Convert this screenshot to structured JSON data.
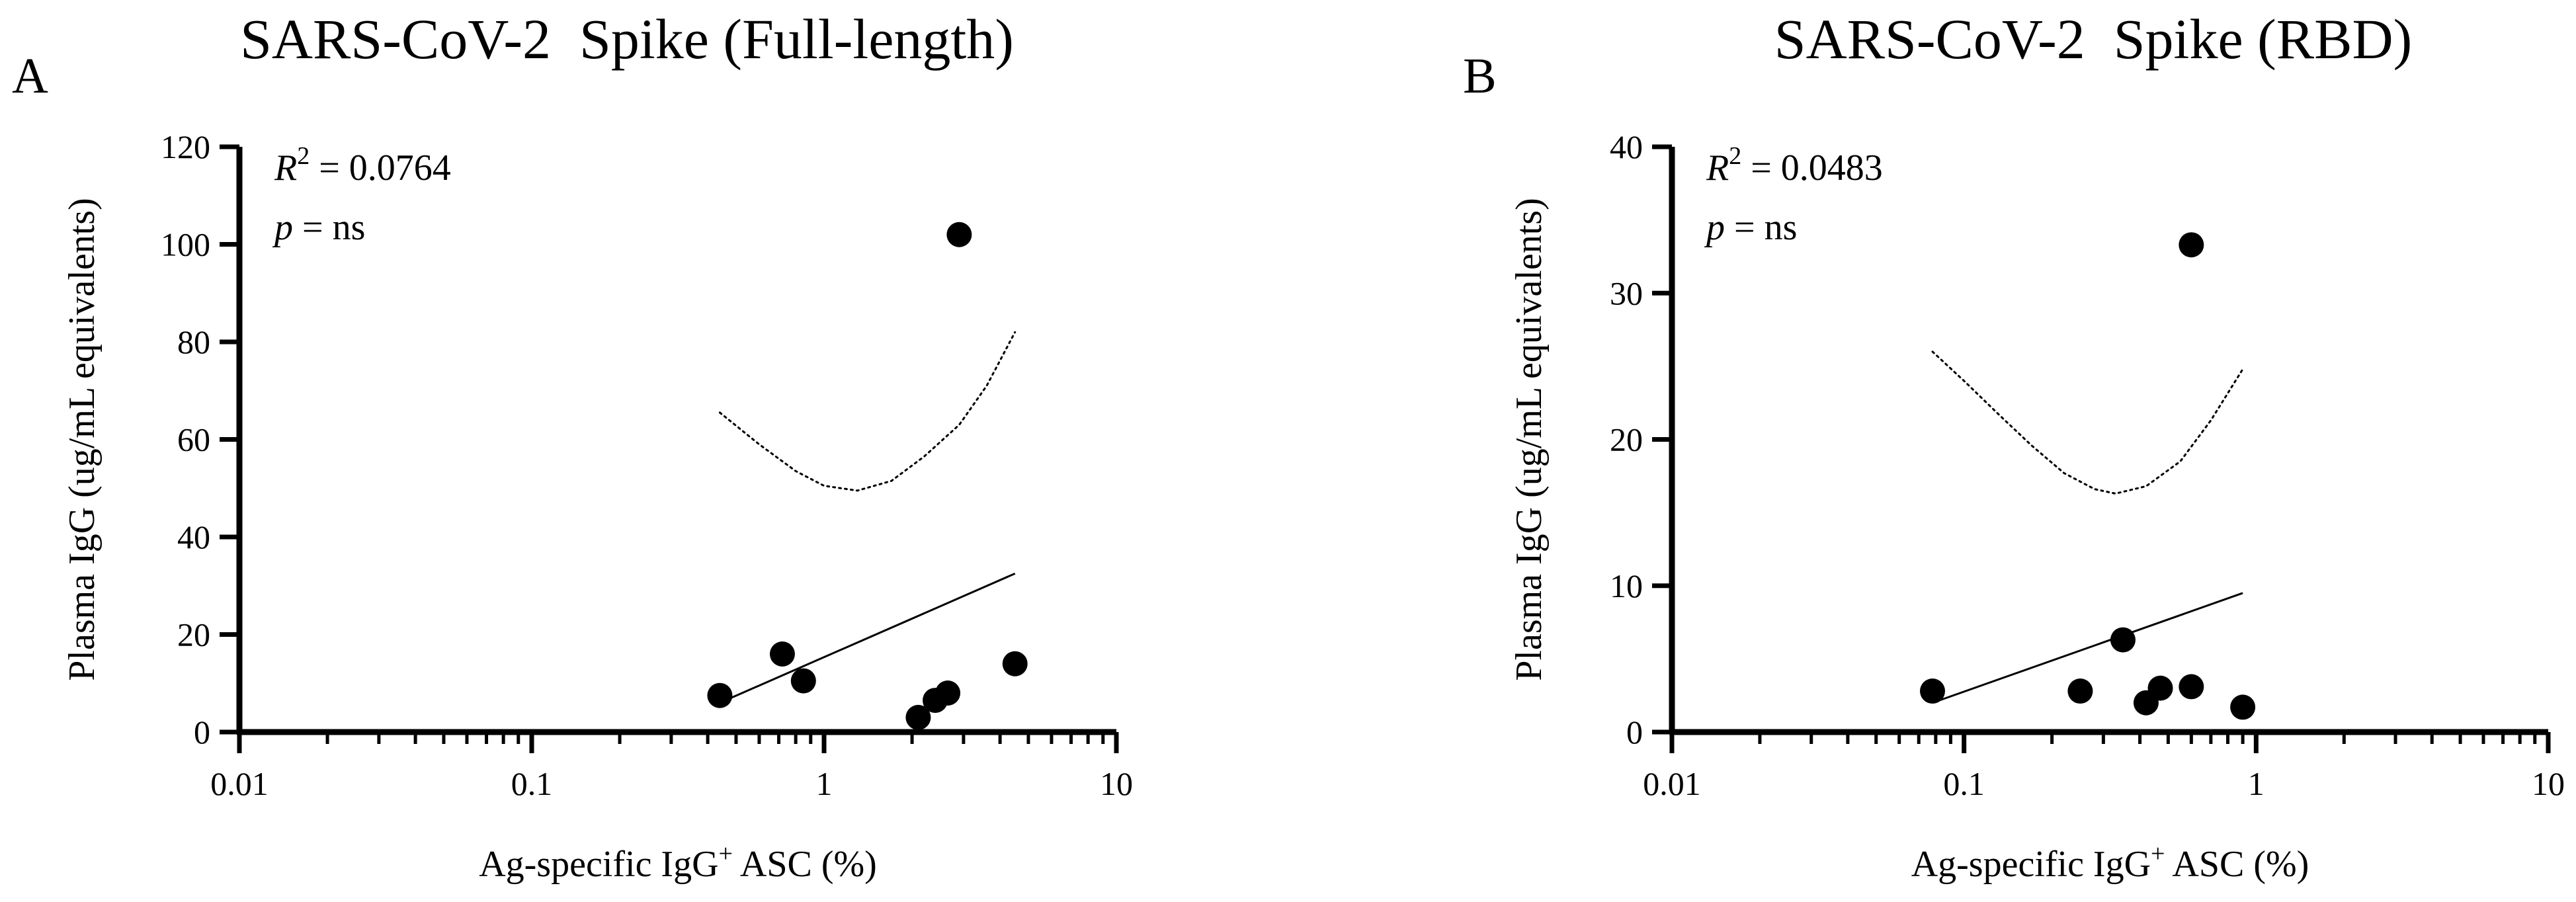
{
  "colors": {
    "marker": "#000000",
    "line": "#000000",
    "background": "#ffffff"
  },
  "chart_data": [
    {
      "type": "scatter",
      "panel_letter": "A",
      "title": "SARS-CoV-2  Spike (Full-length)",
      "xlabel": {
        "main": "Ag-specific IgG",
        "sup": "+",
        "tail": " ASC (%)"
      },
      "ylabel": "Plasma IgG (ug/mL equivalents)",
      "x_scale": "log",
      "xlim": [
        0.01,
        10
      ],
      "ylim": [
        0,
        120
      ],
      "x_ticks": [
        0.01,
        0.1,
        1,
        10
      ],
      "x_tick_labels": [
        "0.01",
        "0.1",
        "1",
        "10"
      ],
      "y_ticks": [
        0,
        20,
        40,
        60,
        80,
        100,
        120
      ],
      "y_tick_labels": [
        "0",
        "20",
        "40",
        "60",
        "80",
        "100",
        "120"
      ],
      "grid": false,
      "annotation": {
        "r2_label": "R",
        "r2_sup": "2",
        "r2_value": " = 0.0764",
        "p_label": "p",
        "p_value": " = ns"
      },
      "points": [
        {
          "x": 0.44,
          "y": 7.5
        },
        {
          "x": 0.72,
          "y": 16
        },
        {
          "x": 0.85,
          "y": 10.5
        },
        {
          "x": 2.1,
          "y": 3
        },
        {
          "x": 2.4,
          "y": 6.5
        },
        {
          "x": 2.65,
          "y": 8
        },
        {
          "x": 2.9,
          "y": 102
        },
        {
          "x": 4.5,
          "y": 14
        }
      ],
      "fit_line": [
        {
          "x": 0.44,
          "y": 6
        },
        {
          "x": 4.5,
          "y": 32.5
        }
      ],
      "confidence_band": [
        {
          "x": 0.44,
          "y": 65.5
        },
        {
          "x": 0.6,
          "y": 59
        },
        {
          "x": 0.8,
          "y": 53.5
        },
        {
          "x": 1.0,
          "y": 50.5
        },
        {
          "x": 1.3,
          "y": 49.5
        },
        {
          "x": 1.7,
          "y": 51.5
        },
        {
          "x": 2.2,
          "y": 56.5
        },
        {
          "x": 2.9,
          "y": 63
        },
        {
          "x": 3.6,
          "y": 71
        },
        {
          "x": 4.5,
          "y": 82
        }
      ]
    },
    {
      "type": "scatter",
      "panel_letter": "B",
      "title": "SARS-CoV-2  Spike (RBD)",
      "xlabel": {
        "main": "Ag-specific IgG",
        "sup": "+",
        "tail": " ASC (%)"
      },
      "ylabel": "Plasma IgG (ug/mL equivalents)",
      "x_scale": "log",
      "xlim": [
        0.01,
        10
      ],
      "ylim": [
        0,
        40
      ],
      "x_ticks": [
        0.01,
        0.1,
        1,
        10
      ],
      "x_tick_labels": [
        "0.01",
        "0.1",
        "1",
        "10"
      ],
      "y_ticks": [
        0,
        10,
        20,
        30,
        40
      ],
      "y_tick_labels": [
        "0",
        "10",
        "20",
        "30",
        "40"
      ],
      "grid": false,
      "annotation": {
        "r2_label": "R",
        "r2_sup": "2",
        "r2_value": " = 0.0483",
        "p_label": "p",
        "p_value": " = ns"
      },
      "points": [
        {
          "x": 0.078,
          "y": 2.8
        },
        {
          "x": 0.25,
          "y": 2.8
        },
        {
          "x": 0.35,
          "y": 6.3
        },
        {
          "x": 0.42,
          "y": 2.0
        },
        {
          "x": 0.47,
          "y": 3.0
        },
        {
          "x": 0.6,
          "y": 3.1
        },
        {
          "x": 0.6,
          "y": 33.3
        },
        {
          "x": 0.9,
          "y": 1.7
        }
      ],
      "fit_line": [
        {
          "x": 0.078,
          "y": 2.0
        },
        {
          "x": 0.9,
          "y": 9.5
        }
      ],
      "confidence_band": [
        {
          "x": 0.078,
          "y": 26
        },
        {
          "x": 0.1,
          "y": 24
        },
        {
          "x": 0.13,
          "y": 21.8
        },
        {
          "x": 0.17,
          "y": 19.6
        },
        {
          "x": 0.22,
          "y": 17.7
        },
        {
          "x": 0.28,
          "y": 16.6
        },
        {
          "x": 0.33,
          "y": 16.3
        },
        {
          "x": 0.42,
          "y": 16.8
        },
        {
          "x": 0.55,
          "y": 18.5
        },
        {
          "x": 0.7,
          "y": 21.3
        },
        {
          "x": 0.9,
          "y": 24.8
        }
      ]
    }
  ]
}
